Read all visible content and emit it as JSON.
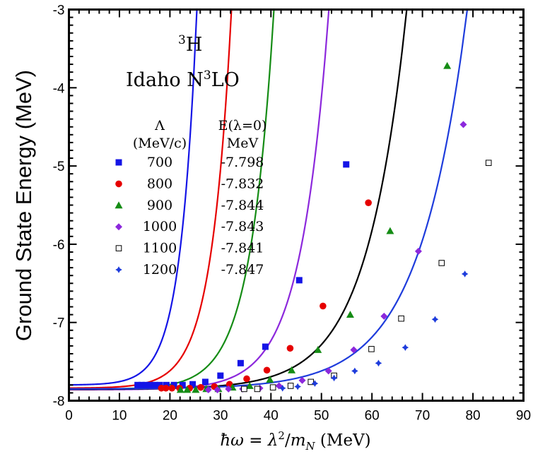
{
  "chart_data": {
    "type": "scatter",
    "ylabel": "Ground State Energy (MeV)",
    "xlabel_latex": "ħω = λ²/m_N (MeV)",
    "xlim": [
      0,
      90
    ],
    "ylim": [
      -8,
      -3
    ],
    "x_ticks": [
      "0",
      "10",
      "20",
      "30",
      "40",
      "50",
      "60",
      "70",
      "80",
      "90"
    ],
    "y_ticks": [
      "-3",
      "-4",
      "-5",
      "-6",
      "-7",
      "-8"
    ],
    "inset": {
      "nucleus": "3",
      "nucleus_symbol": "H",
      "potential_prefix": "Idaho N",
      "potential_exp": "3",
      "potential_suffix": "LO"
    },
    "legend": {
      "col1_header": "Λ",
      "col1_unit": "(MeV/c)",
      "col2_header": "E(λ=0)",
      "col2_unit": "MeV"
    },
    "series": [
      {
        "name": "700",
        "e0": "-7.798",
        "color": "#1414e6",
        "marker": "square",
        "x": [
          13.6,
          14.4,
          15.2,
          16,
          17,
          18,
          19.3,
          20.8,
          22.5,
          24.5,
          27,
          30,
          34,
          38.9,
          45.6,
          54.9
        ],
        "y": [
          -7.8,
          -7.8,
          -7.8,
          -7.8,
          -7.8,
          -7.8,
          -7.8,
          -7.8,
          -7.8,
          -7.79,
          -7.76,
          -7.68,
          -7.52,
          -7.31,
          -6.46,
          -4.98
        ]
      },
      {
        "name": "800",
        "e0": "-7.832",
        "color": "#e60000",
        "marker": "circle",
        "x": [
          18.3,
          19.2,
          20.4,
          21.9,
          23.9,
          26.1,
          28.8,
          31.8,
          35.2,
          39.2,
          43.8,
          50.3,
          59.3
        ],
        "y": [
          -7.84,
          -7.84,
          -7.84,
          -7.84,
          -7.84,
          -7.83,
          -7.82,
          -7.79,
          -7.72,
          -7.61,
          -7.33,
          -6.79,
          -5.47
        ]
      },
      {
        "name": "900",
        "e0": "-7.844",
        "color": "#158c15",
        "marker": "triangle",
        "x": [
          22.1,
          23.4,
          25.1,
          27.2,
          29.6,
          32.4,
          35.8,
          39.8,
          44.1,
          49.3,
          55.7,
          63.6,
          74.9
        ],
        "y": [
          -7.86,
          -7.86,
          -7.86,
          -7.85,
          -7.85,
          -7.83,
          -7.81,
          -7.73,
          -7.61,
          -7.35,
          -6.9,
          -5.83,
          -3.72
        ]
      },
      {
        "name": "1000",
        "e0": "-7.843",
        "color": "#8c28dc",
        "marker": "diamond",
        "x": [
          27.6,
          29.4,
          31.6,
          34.4,
          37.8,
          41.6,
          46.2,
          51.4,
          56.4,
          62.4,
          69.2,
          78.1
        ],
        "y": [
          -7.86,
          -7.86,
          -7.85,
          -7.85,
          -7.84,
          -7.81,
          -7.74,
          -7.62,
          -7.35,
          -6.92,
          -6.09,
          -4.47
        ]
      },
      {
        "name": "1100",
        "e0": "-7.841",
        "color": "#000000",
        "marker": "open-square",
        "x": [
          34.7,
          37.3,
          40.4,
          43.9,
          47.9,
          52.5,
          59.9,
          65.8,
          73.8,
          83.1
        ],
        "y": [
          -7.85,
          -7.85,
          -7.83,
          -7.81,
          -7.76,
          -7.68,
          -7.34,
          -6.95,
          -6.24,
          -4.96
        ]
      },
      {
        "name": "1200",
        "e0": "-7.847",
        "color": "#1e3cdc",
        "marker": "star",
        "x": [
          42.3,
          45.3,
          48.7,
          52.5,
          56.6,
          61.3,
          66.6,
          72.5,
          78.4
        ],
        "y": [
          -7.84,
          -7.82,
          -7.78,
          -7.71,
          -7.62,
          -7.52,
          -7.32,
          -6.96,
          -6.38
        ]
      }
    ],
    "fit_curves": [
      {
        "color": "#1414e6",
        "a": 0.00204,
        "b": 0.3064,
        "c": -7.8
      },
      {
        "color": "#e60000",
        "a": 0.00143,
        "b": 0.2525,
        "c": -7.84
      },
      {
        "color": "#158c15",
        "a": 0.00086,
        "b": 0.2128,
        "c": -7.855
      },
      {
        "color": "#8c28dc",
        "a": 0.000497,
        "b": 0.1785,
        "c": -7.86
      },
      {
        "color": "#000000",
        "a": 0.00102,
        "b": 0.1266,
        "c": -7.855
      },
      {
        "color": "#1e3cdc",
        "a": 0.00118,
        "b": 0.1055,
        "c": -7.85
      }
    ]
  }
}
